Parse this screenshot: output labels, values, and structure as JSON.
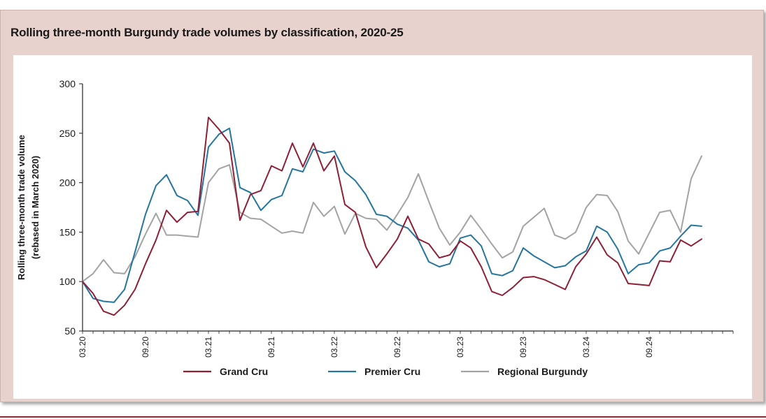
{
  "chart_data": {
    "type": "line",
    "title": "Rolling three-month Burgundy trade volumes by classification, 2020-25",
    "ylabel": "Rolling three-month trade volume",
    "ylabel_sub": "(rebased in March 2020)",
    "xlabel": "",
    "ylim": [
      50,
      300
    ],
    "yticks": [
      50,
      100,
      150,
      200,
      250,
      300
    ],
    "xtick_labels": [
      {
        "label": "03.20",
        "index": 0
      },
      {
        "label": "09.20",
        "index": 6
      },
      {
        "label": "03.21",
        "index": 12
      },
      {
        "label": "09.21",
        "index": 18
      },
      {
        "label": "03.22",
        "index": 24
      },
      {
        "label": "09.22",
        "index": 30
      },
      {
        "label": "03.23",
        "index": 36
      },
      {
        "label": "09.23",
        "index": 42
      },
      {
        "label": "03.24",
        "index": 48
      },
      {
        "label": "09.24",
        "index": 54
      }
    ],
    "x_count": 63,
    "legend_position": "bottom",
    "series": [
      {
        "name": "Grand Cru",
        "color": "#8e1f35",
        "values": [
          100,
          88,
          70,
          66,
          76,
          92,
          118,
          142,
          172,
          160,
          170,
          171,
          266,
          254,
          240,
          162,
          188,
          192,
          217,
          212,
          240,
          216,
          240,
          212,
          227,
          178,
          170,
          135,
          114,
          128,
          143,
          166,
          143,
          138,
          124,
          127,
          141,
          134,
          115,
          90,
          86,
          94,
          104,
          105,
          102,
          97,
          92,
          115,
          128,
          145,
          127,
          119,
          98,
          97,
          96,
          121,
          120,
          142,
          136,
          143
        ]
      },
      {
        "name": "Premier Cru",
        "color": "#2475a0",
        "values": [
          100,
          83,
          80,
          79,
          92,
          130,
          168,
          197,
          208,
          187,
          182,
          167,
          236,
          249,
          255,
          195,
          190,
          172,
          183,
          187,
          214,
          211,
          234,
          230,
          232,
          211,
          202,
          188,
          168,
          166,
          158,
          154,
          142,
          120,
          115,
          118,
          144,
          147,
          136,
          108,
          106,
          111,
          134,
          126,
          120,
          114,
          116,
          125,
          131,
          156,
          150,
          133,
          108,
          117,
          119,
          131,
          134,
          146,
          157,
          156
        ]
      },
      {
        "name": "Regional Burgundy",
        "color": "#a3a3a3",
        "values": [
          100,
          108,
          122,
          109,
          108,
          125,
          148,
          169,
          147,
          147,
          146,
          145,
          200,
          214,
          218,
          170,
          164,
          163,
          156,
          149,
          151,
          149,
          180,
          166,
          176,
          148,
          169,
          164,
          163,
          152,
          168,
          185,
          209,
          181,
          154,
          137,
          150,
          167,
          153,
          138,
          124,
          130,
          156,
          165,
          174,
          147,
          143,
          150,
          175,
          188,
          187,
          171,
          141,
          128,
          149,
          170,
          172,
          150,
          204,
          227
        ]
      }
    ]
  }
}
